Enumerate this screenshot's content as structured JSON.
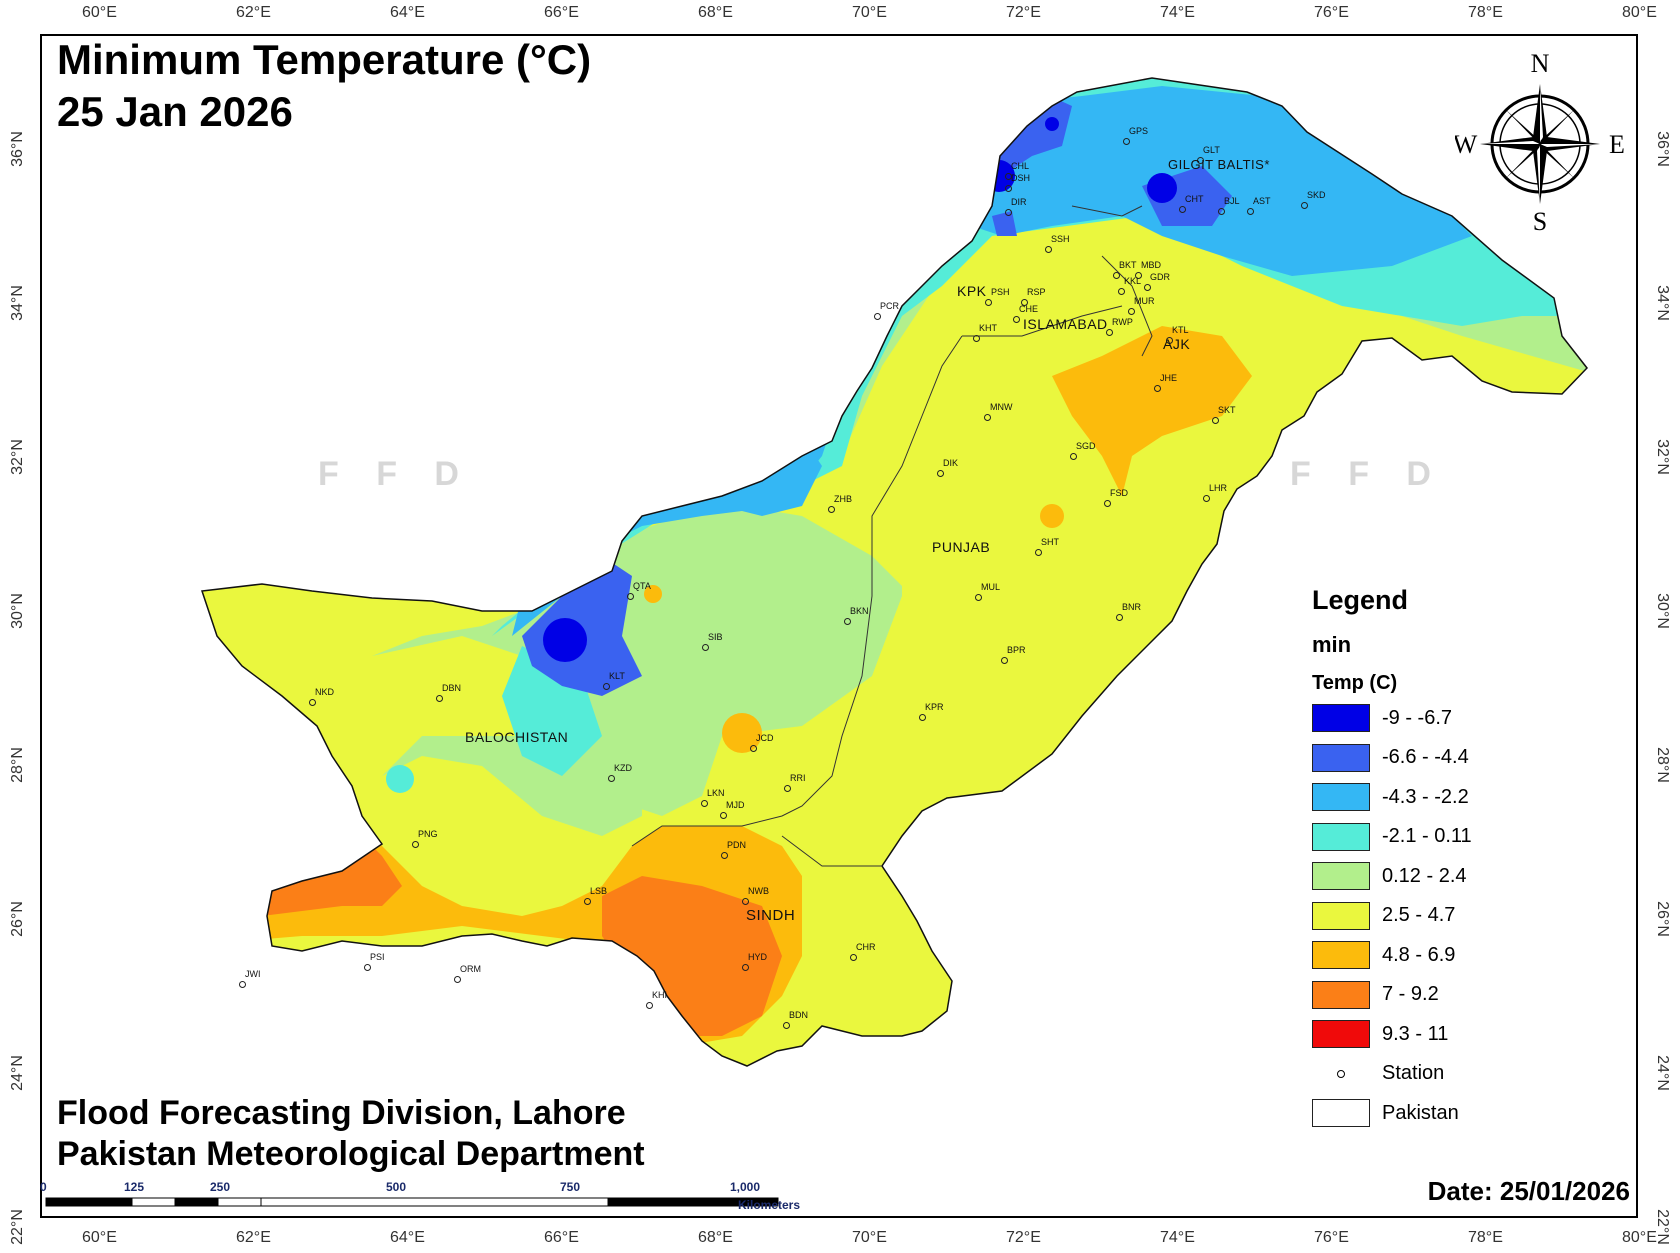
{
  "title": {
    "line1": "Minimum Temperature (°C)",
    "line2": "25 Jan 2026"
  },
  "credit": {
    "line1": "Flood Forecasting Division, Lahore",
    "line2": "Pakistan Meteorological Department"
  },
  "date": "Date: 25/01/2026",
  "watermark": "FFD",
  "compass": {
    "n": "N",
    "s": "S",
    "e": "E",
    "w": "W"
  },
  "graticule": {
    "lon": [
      "60°E",
      "62°E",
      "64°E",
      "66°E",
      "68°E",
      "70°E",
      "72°E",
      "74°E",
      "76°E",
      "78°E",
      "80°E"
    ],
    "lat": [
      "36°N",
      "34°N",
      "32°N",
      "30°N",
      "28°N",
      "26°N",
      "24°N",
      "22°N"
    ]
  },
  "legend": {
    "title": "Legend",
    "subtitle": "min",
    "field": "Temp (C)",
    "classes": [
      {
        "label": "-9 - -6.7",
        "color": "#0000e6"
      },
      {
        "label": "-6.6 - -4.4",
        "color": "#3a62f0"
      },
      {
        "label": "-4.3 - -2.2",
        "color": "#34b7f4"
      },
      {
        "label": "-2.1 - 0.11",
        "color": "#55ecd8"
      },
      {
        "label": "0.12 - 2.4",
        "color": "#b2ef8c"
      },
      {
        "label": "2.5 - 4.7",
        "color": "#eaf73e"
      },
      {
        "label": "4.8 - 6.9",
        "color": "#fcbb0c"
      },
      {
        "label": "7 - 9.2",
        "color": "#fb7f17"
      },
      {
        "label": "9.3 - 11",
        "color": "#f00a0a"
      }
    ],
    "station": "Station",
    "boundary": "Pakistan"
  },
  "scale_bar": {
    "ticks": [
      "0",
      "125",
      "250",
      "500",
      "750",
      "1,000"
    ],
    "unit": "Kilometers"
  },
  "regions": [
    "GILGIT BALTIS*",
    "KPK",
    "ISLAMABAD",
    "AJK",
    "PUNJAB",
    "BALOCHISTAN",
    "SINDH"
  ],
  "stations": [
    "GPS",
    "GLT",
    "CHL",
    "DSH",
    "DIR",
    "SSH",
    "CHT",
    "BJL",
    "AST",
    "SKD",
    "BKT",
    "MBD",
    "KKL",
    "GDR",
    "MUR",
    "RSP",
    "PSH",
    "CHE",
    "KHT",
    "RWP",
    "KTL",
    "PCR",
    "JHE",
    "SKT",
    "MNW",
    "SGD",
    "DIK",
    "FSD",
    "LHR",
    "ZHB",
    "SHT",
    "PUNJAB",
    "QTA",
    "MUL",
    "BNR",
    "BKN",
    "SIB",
    "BPR",
    "NKD",
    "DBN",
    "KLT",
    "KPR",
    "JCD",
    "KZD",
    "RRI",
    "LKN",
    "MJD",
    "PNG",
    "PDN",
    "LSB",
    "NWB",
    "PSI",
    "ORM",
    "HYD",
    "CHR",
    "JWI",
    "KHI",
    "BDN"
  ]
}
